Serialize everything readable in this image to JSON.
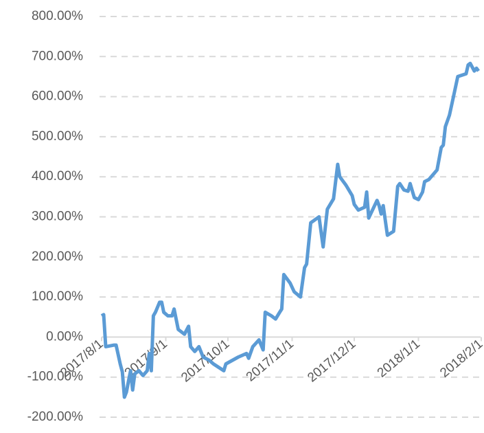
{
  "chart_data": {
    "type": "line",
    "x": [
      "2017/8/1",
      "2017/8/2",
      "2017/8/3",
      "2017/8/7",
      "2017/8/8",
      "2017/8/10",
      "2017/8/11",
      "2017/8/12",
      "2017/8/13",
      "2017/8/14",
      "2017/8/15",
      "2017/8/16",
      "2017/8/17",
      "2017/8/19",
      "2017/8/21",
      "2017/8/23",
      "2017/8/24",
      "2017/8/25",
      "2017/8/26",
      "2017/8/27",
      "2017/8/29",
      "2017/8/30",
      "2017/8/31",
      "2017/9/2",
      "2017/9/4",
      "2017/9/5",
      "2017/9/7",
      "2017/9/10",
      "2017/9/12",
      "2017/9/13",
      "2017/9/15",
      "2017/9/17",
      "2017/9/19",
      "2017/9/22",
      "2017/9/24",
      "2017/9/29",
      "2017/9/30",
      "2017/10/6",
      "2017/10/10",
      "2017/10/11",
      "2017/10/13",
      "2017/10/16",
      "2017/10/18",
      "2017/10/19",
      "2017/10/22",
      "2017/10/24",
      "2017/10/26",
      "2017/10/27",
      "2017/10/28",
      "2017/10/31",
      "2017/11/2",
      "2017/11/5",
      "2017/11/7",
      "2017/11/8",
      "2017/11/10",
      "2017/11/14",
      "2017/11/16",
      "2017/11/18",
      "2017/11/21",
      "2017/11/23",
      "2017/11/24",
      "2017/11/27",
      "2017/11/30",
      "2017/12/1",
      "2017/12/3",
      "2017/12/6",
      "2017/12/7",
      "2017/12/8",
      "2017/12/12",
      "2017/12/13",
      "2017/12/14",
      "2017/12/15",
      "2017/12/17",
      "2017/12/20",
      "2017/12/22",
      "2017/12/23",
      "2017/12/25",
      "2017/12/27",
      "2017/12/28",
      "2017/12/30",
      "2018/1/1",
      "2018/1/3",
      "2018/1/4",
      "2018/1/6",
      "2018/1/10",
      "2018/1/12",
      "2018/1/13",
      "2018/1/14",
      "2018/1/16",
      "2018/1/18",
      "2018/1/20",
      "2018/1/24",
      "2018/1/25",
      "2018/1/26",
      "2018/1/28",
      "2018/1/29",
      "2018/1/30"
    ],
    "series": [
      {
        "color": "#5b9bd5",
        "values": [
          53,
          56,
          -24,
          -20,
          -20,
          -67,
          -87,
          -150,
          -137,
          -110,
          -84,
          -132,
          -92,
          -84,
          -96,
          -84,
          -41,
          -84,
          53,
          62,
          87,
          87,
          62,
          53,
          53,
          70,
          19,
          7,
          27,
          -24,
          -36,
          -24,
          -50,
          -58,
          -67,
          -84,
          -67,
          -50,
          -41,
          -53,
          -24,
          -7,
          -32,
          62,
          53,
          45,
          62,
          70,
          156,
          135,
          113,
          100,
          173,
          182,
          285,
          300,
          225,
          319,
          345,
          431,
          400,
          379,
          353,
          331,
          317,
          324,
          362,
          297,
          341,
          328,
          307,
          328,
          254,
          264,
          376,
          383,
          367,
          364,
          383,
          348,
          343,
          362,
          388,
          393,
          417,
          473,
          479,
          525,
          554,
          602,
          650,
          657,
          679,
          683,
          664,
          671,
          664
        ]
      }
    ],
    "ylim": [
      -200,
      800
    ],
    "yticks": [
      {
        "value": -200,
        "label": "-200.00%"
      },
      {
        "value": -100,
        "label": "-100.00%"
      },
      {
        "value": 0,
        "label": "0.00%"
      },
      {
        "value": 100,
        "label": "100.00%"
      },
      {
        "value": 200,
        "label": "200.00%"
      },
      {
        "value": 300,
        "label": "300.00%"
      },
      {
        "value": 400,
        "label": "400.00%"
      },
      {
        "value": 500,
        "label": "500.00%"
      },
      {
        "value": 600,
        "label": "600.00%"
      },
      {
        "value": 700,
        "label": "700.00%"
      },
      {
        "value": 800,
        "label": "800.00%"
      }
    ],
    "xlim": [
      "2017/8/1",
      "2018/2/1"
    ],
    "xticks": [
      "2017/8/1",
      "2017/9/1",
      "2017/10/1",
      "2017/11/1",
      "2017/12/1",
      "2018/1/1",
      "2018/2/1"
    ],
    "grid": true
  }
}
